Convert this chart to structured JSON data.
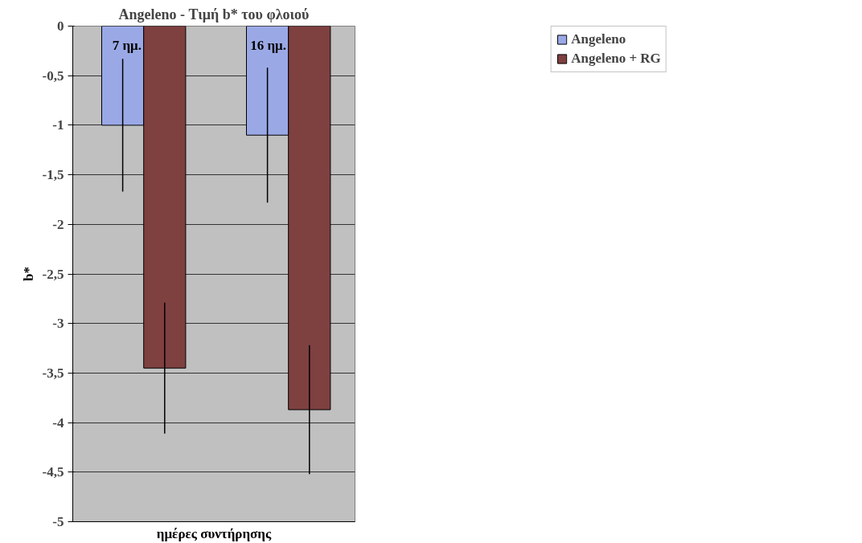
{
  "chart_data": {
    "type": "bar",
    "title": "Angeleno - Τιμή b* του φλοιού",
    "xlabel": "ημέρες συντήρησης",
    "ylabel": "b*",
    "categories": [
      "7 ημ.",
      "16 ημ."
    ],
    "series": [
      {
        "name": "Angeleno",
        "color": "#9aa9e6",
        "values": [
          -1.0,
          -1.1
        ],
        "errors": [
          0.67,
          0.68
        ]
      },
      {
        "name": "Angeleno + RG",
        "color": "#7f4040",
        "values": [
          -3.45,
          -3.87
        ],
        "errors": [
          0.66,
          0.65
        ]
      }
    ],
    "ylim": [
      -5,
      0
    ],
    "yticks": [
      0,
      {
        "value": -0.5,
        "label": "-0,5"
      },
      -1,
      {
        "value": -1.5,
        "label": "-1,5"
      },
      -2,
      {
        "value": -2.5,
        "label": "-2,5"
      },
      -3,
      {
        "value": -3.5,
        "label": "-3,5"
      },
      -4,
      {
        "value": -4.5,
        "label": "-4,5"
      },
      -5
    ],
    "grid": "y",
    "legend": "top right"
  }
}
